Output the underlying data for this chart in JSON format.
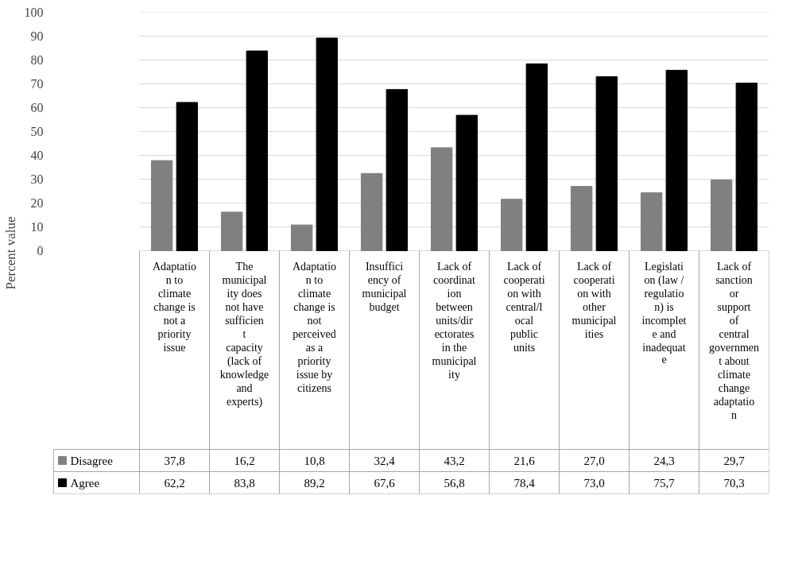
{
  "chart_data": {
    "type": "bar",
    "ylabel": "Percent value",
    "categories": [
      "Adaptation to climate change is not a priority issue",
      "The municipality does not have sufficient capacity (lack of knowledge and experts)",
      "Adaptation to climate change is not perceived as a priority issue by citizens",
      "Insufficiency of municipal budget",
      "Lack of coordination between units/directorates in the municipality",
      "Lack of cooperation with central/local public units",
      "Lack of cooperation with other municipalities",
      "Legislation (law / regulation) is incomplete and inadequate",
      "Lack of sanction or support of central government about climate change adaptation"
    ],
    "series": [
      {
        "name": "Disagree",
        "color": "#808080",
        "values": [
          37.8,
          16.2,
          10.8,
          32.4,
          43.2,
          21.6,
          27.0,
          24.3,
          29.7
        ],
        "value_labels": [
          "37,8",
          "16,2",
          "10,8",
          "32,4",
          "43,2",
          "21,6",
          "27,0",
          "24,3",
          "29,7"
        ]
      },
      {
        "name": "Agree",
        "color": "#000000",
        "values": [
          62.2,
          83.8,
          89.2,
          67.6,
          56.8,
          78.4,
          73.0,
          75.7,
          70.3
        ],
        "value_labels": [
          "62,2",
          "83,8",
          "89,2",
          "67,6",
          "56,8",
          "78,4",
          "73,0",
          "75,7",
          "70,3"
        ]
      }
    ],
    "ylim": [
      0,
      100
    ],
    "yticks": [
      0,
      10,
      20,
      30,
      40,
      50,
      60,
      70,
      80,
      90,
      100
    ],
    "grid": "y",
    "legend": "bottom"
  }
}
